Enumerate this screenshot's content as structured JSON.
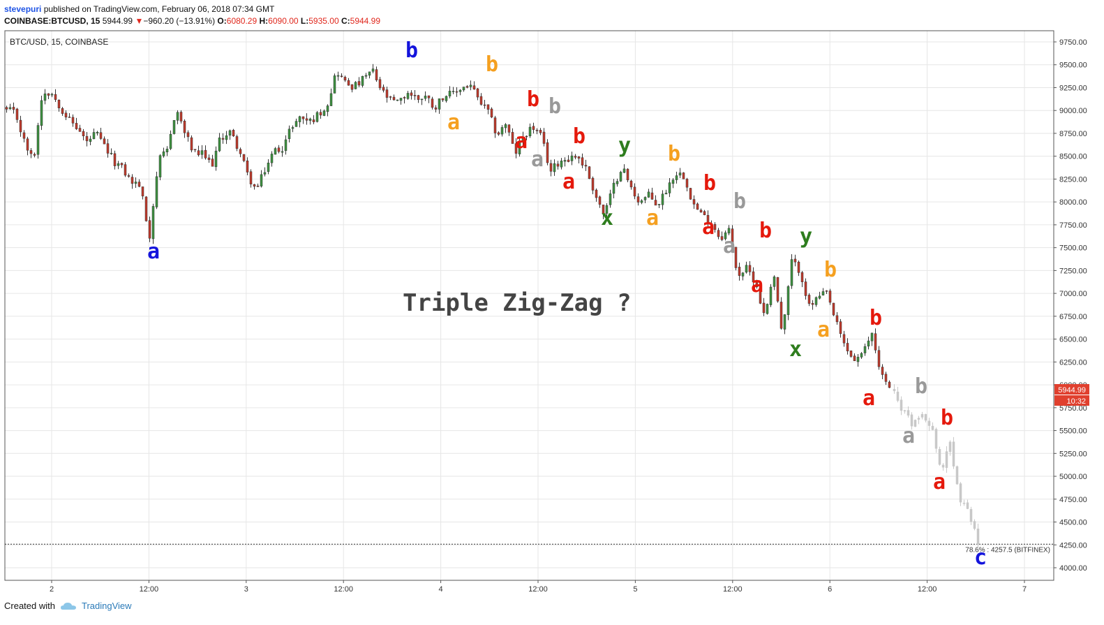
{
  "header": {
    "user": "stevepuri",
    "published": " published on TradingView.com, February 06, 2018 07:34 GMT"
  },
  "ticker": {
    "symbol": "COINBASE:BTCUSD, 15",
    "last": "5944.99",
    "change": "−960.20 (−13.91%)",
    "o_label": "O:",
    "o": "6080.29",
    "h_label": "H:",
    "h": "6090.00",
    "l_label": "L:",
    "l": "5935.00",
    "c_label": "C:",
    "c": "5944.99"
  },
  "footer": {
    "created": "Created with",
    "brand": "TradingView"
  },
  "chart_data": {
    "type": "candlestick",
    "title": "BTC/USD, 15, COINBASE",
    "annotation": "Triple Zig-Zag ?",
    "ylim": [
      3850,
      9900
    ],
    "y_ticks": [
      "9750.00",
      "9500.00",
      "9250.00",
      "9000.00",
      "8750.00",
      "8500.00",
      "8250.00",
      "8000.00",
      "7750.00",
      "7500.00",
      "7250.00",
      "7000.00",
      "6750.00",
      "6500.00",
      "6250.00",
      "6000.00",
      "5750.00",
      "5500.00",
      "5250.00",
      "5000.00",
      "4750.00",
      "4500.00",
      "4250.00",
      "4000.00"
    ],
    "x_ticks": [
      "2",
      "12:00",
      "3",
      "12:00",
      "4",
      "12:00",
      "5",
      "12:00",
      "6",
      "12:00",
      "7"
    ],
    "price_label": "5944.99",
    "countdown_label": "10:32",
    "fib_level": {
      "price": 4257.5,
      "label": "78.6% : 4257.5 (BITFINEX)"
    },
    "colors": {
      "up": "#3d9140",
      "down": "#c0392b",
      "projection": "#c8c8c8",
      "price_tag": "#e0402e"
    },
    "series": [
      {
        "name": "actual",
        "points": [
          9000,
          8970,
          8650,
          8440,
          9200,
          9200,
          9050,
          8900,
          8800,
          8650,
          8750,
          8600,
          8450,
          8360,
          8220,
          8180,
          7600,
          8440,
          8550,
          9030,
          8750,
          8530,
          8520,
          8400,
          8700,
          8770,
          8590,
          8300,
          8120,
          8360,
          8560,
          8600,
          8840,
          8930,
          8880,
          8960,
          9080,
          9440,
          9300,
          9260,
          9340,
          9440,
          9220,
          9110,
          9080,
          9200,
          9130,
          9160,
          9030,
          9170,
          9170,
          9250,
          9280,
          9100,
          8980,
          8730,
          8860,
          8520,
          8730,
          8820,
          8700,
          8330,
          8450,
          8480,
          8510,
          8360,
          8090,
          7850,
          8150,
          8400,
          8150,
          8000,
          8070,
          7960,
          8140,
          8320,
          8290,
          7980,
          7850,
          7780,
          7610,
          7690,
          7200,
          7270,
          7130,
          6730,
          7260,
          6520,
          7350,
          7250,
          6850,
          6950,
          7000,
          6680,
          6420,
          6270,
          6320,
          6580,
          6150,
          5944.99
        ]
      },
      {
        "name": "projection",
        "points": [
          5944.99,
          5700,
          5560,
          5720,
          5550,
          5050,
          5340,
          4740,
          4600,
          4257.5
        ]
      }
    ],
    "wave_labels": [
      {
        "text": "a",
        "color": "#1414dc",
        "x": 220,
        "y": 370
      },
      {
        "text": "b",
        "color": "#1414dc",
        "x": 590,
        "y": 82
      },
      {
        "text": "a",
        "color": "#f5a020",
        "x": 650,
        "y": 185
      },
      {
        "text": "b",
        "color": "#f5a020",
        "x": 705,
        "y": 102
      },
      {
        "text": "a",
        "color": "#e5190c",
        "x": 747,
        "y": 212
      },
      {
        "text": "b",
        "color": "#e5190c",
        "x": 764,
        "y": 152
      },
      {
        "text": "a",
        "color": "#999999",
        "x": 770,
        "y": 238
      },
      {
        "text": "b",
        "color": "#999999",
        "x": 795,
        "y": 162
      },
      {
        "text": "a",
        "color": "#e5190c",
        "x": 815,
        "y": 270
      },
      {
        "text": "b",
        "color": "#e5190c",
        "x": 830,
        "y": 205
      },
      {
        "text": "x",
        "color": "#2e7d1e",
        "x": 870,
        "y": 322
      },
      {
        "text": "y",
        "color": "#2e7d1e",
        "x": 895,
        "y": 218
      },
      {
        "text": "a",
        "color": "#f5a020",
        "x": 935,
        "y": 322
      },
      {
        "text": "b",
        "color": "#f5a020",
        "x": 966,
        "y": 230
      },
      {
        "text": "a",
        "color": "#e5190c",
        "x": 1015,
        "y": 335
      },
      {
        "text": "b",
        "color": "#e5190c",
        "x": 1017,
        "y": 272
      },
      {
        "text": "a",
        "color": "#999999",
        "x": 1045,
        "y": 362
      },
      {
        "text": "b",
        "color": "#999999",
        "x": 1060,
        "y": 298
      },
      {
        "text": "a",
        "color": "#e5190c",
        "x": 1085,
        "y": 418
      },
      {
        "text": "b",
        "color": "#e5190c",
        "x": 1097,
        "y": 340
      },
      {
        "text": "x",
        "color": "#2e7d1e",
        "x": 1140,
        "y": 510
      },
      {
        "text": "y",
        "color": "#2e7d1e",
        "x": 1155,
        "y": 348
      },
      {
        "text": "a",
        "color": "#f5a020",
        "x": 1180,
        "y": 482
      },
      {
        "text": "b",
        "color": "#f5a020",
        "x": 1190,
        "y": 396
      },
      {
        "text": "a",
        "color": "#e5190c",
        "x": 1245,
        "y": 580
      },
      {
        "text": "b",
        "color": "#e5190c",
        "x": 1255,
        "y": 465
      },
      {
        "text": "a",
        "color": "#999999",
        "x": 1302,
        "y": 634
      },
      {
        "text": "b",
        "color": "#999999",
        "x": 1320,
        "y": 563
      },
      {
        "text": "b",
        "color": "#e5190c",
        "x": 1357,
        "y": 608
      },
      {
        "text": "a",
        "color": "#e5190c",
        "x": 1346,
        "y": 700
      },
      {
        "text": "c",
        "color": "#1414dc",
        "x": 1405,
        "y": 808
      }
    ]
  }
}
